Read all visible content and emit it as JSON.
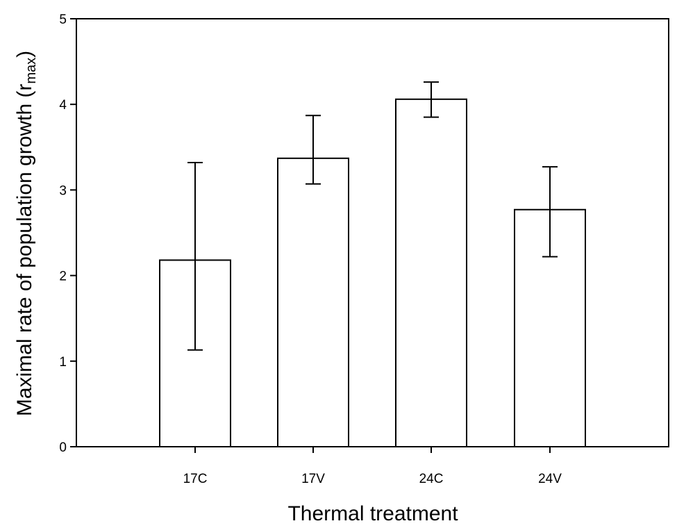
{
  "chart_data": {
    "type": "bar",
    "categories": [
      "17C",
      "17V",
      "24C",
      "24V"
    ],
    "values": [
      2.18,
      3.37,
      4.06,
      2.77
    ],
    "error_low": [
      1.13,
      3.07,
      3.85,
      2.22
    ],
    "error_high": [
      3.32,
      3.87,
      4.26,
      3.27
    ],
    "xlabel": "Thermal treatment",
    "ylabel": {
      "main": "Maximal rate of population growth (r",
      "subscript": "max",
      "close": ")"
    },
    "ylim": [
      0,
      5
    ],
    "yticks": [
      "0",
      "1",
      "2",
      "3",
      "4",
      "5"
    ],
    "grid": false,
    "colors": {
      "bar_fill": "#ffffff",
      "stroke": "#000000"
    }
  }
}
